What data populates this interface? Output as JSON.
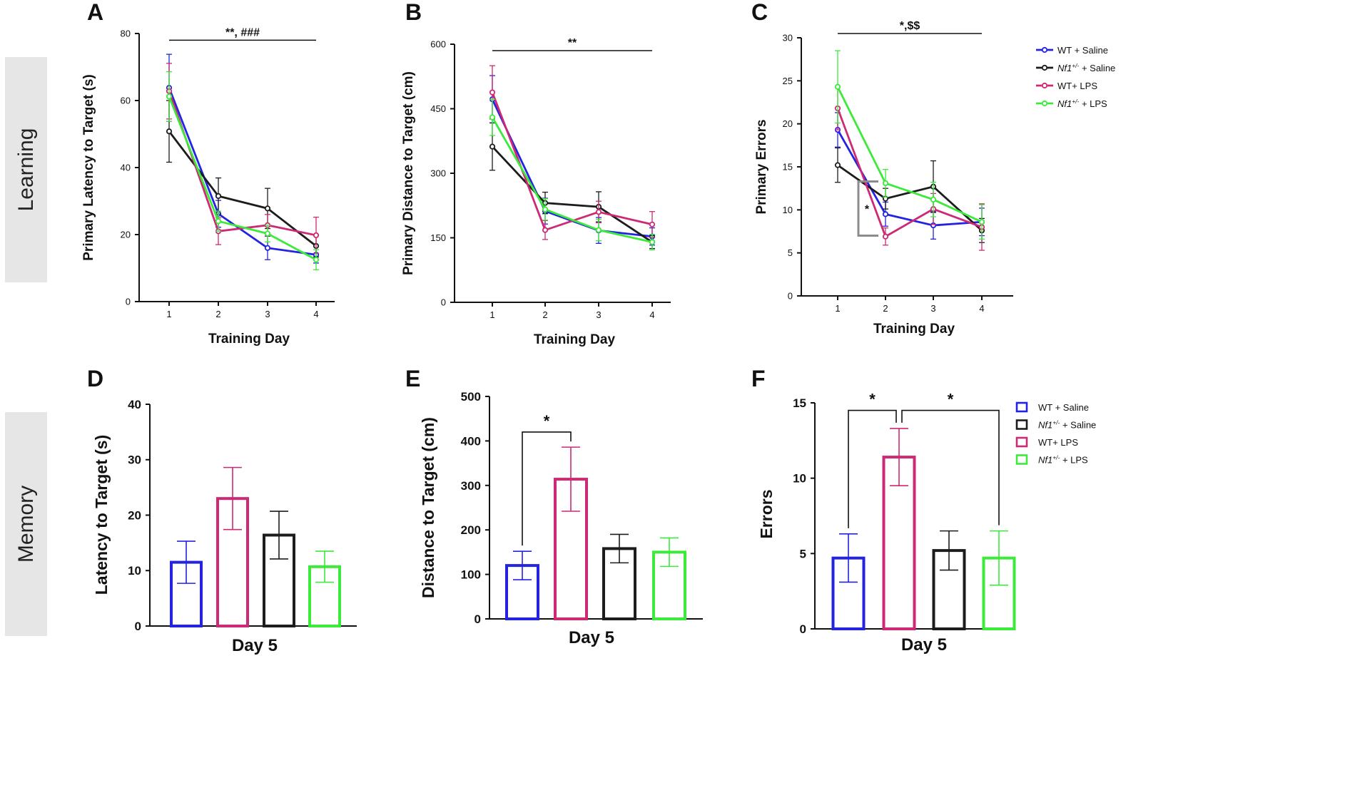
{
  "row_labels": {
    "learning": "Learning",
    "memory": "Memory"
  },
  "colors": {
    "wt_saline": "#2323e0",
    "nf1_saline": "#1c1c1c",
    "wt_lps": "#cc2a74",
    "nf1_lps": "#3bea3b"
  },
  "chart_data": [
    {
      "panel": "A",
      "type": "line",
      "xlabel": "Training Day",
      "ylabel": "Primary Latency to Target (s)",
      "categories": [
        1,
        2,
        3,
        4
      ],
      "ylim": [
        0,
        80
      ],
      "yticks": [
        0,
        20,
        40,
        60,
        80
      ],
      "series": [
        {
          "name": "WT + Saline",
          "color": "#2323e0",
          "values": [
            63.8,
            26.2,
            16.0,
            14.0
          ],
          "errors": [
            10.0,
            4.0,
            3.5,
            2.5
          ]
        },
        {
          "name": "Nf1+/- + Saline",
          "color": "#1c1c1c",
          "values": [
            50.8,
            31.5,
            27.8,
            16.6
          ],
          "errors": [
            9.2,
            5.4,
            6.0,
            3.3
          ]
        },
        {
          "name": "WT+ LPS",
          "color": "#cc2a74",
          "values": [
            62.8,
            21.0,
            22.8,
            19.8
          ],
          "errors": [
            8.3,
            4.0,
            3.2,
            5.4
          ]
        },
        {
          "name": "Nf1+/- + LPS",
          "color": "#3bea3b",
          "values": [
            61.2,
            24.0,
            20.3,
            12.5
          ],
          "errors": [
            7.4,
            3.0,
            2.5,
            3.0
          ]
        }
      ],
      "annotations": [
        {
          "text": "**, ###",
          "from": 1,
          "to": 4,
          "level": 78
        }
      ]
    },
    {
      "panel": "B",
      "type": "line",
      "xlabel": "Training Day",
      "ylabel": "Primary Distance to Target (cm)",
      "categories": [
        1,
        2,
        3,
        4
      ],
      "ylim": [
        0,
        600
      ],
      "yticks": [
        0,
        150,
        300,
        450,
        600
      ],
      "series": [
        {
          "name": "WT + Saline",
          "color": "#2323e0",
          "values": [
            472,
            212,
            167,
            153
          ],
          "errors": [
            55,
            30,
            30,
            20
          ]
        },
        {
          "name": "Nf1+/- + Saline",
          "color": "#1c1c1c",
          "values": [
            362,
            231,
            222,
            140
          ],
          "errors": [
            55,
            25,
            35,
            15
          ]
        },
        {
          "name": "WT+ LPS",
          "color": "#cc2a74",
          "values": [
            488,
            168,
            210,
            181
          ],
          "errors": [
            62,
            22,
            25,
            30
          ]
        },
        {
          "name": "Nf1+/- + LPS",
          "color": "#3bea3b",
          "values": [
            430,
            216,
            168,
            140
          ],
          "errors": [
            42,
            25,
            25,
            18
          ]
        }
      ],
      "annotations": [
        {
          "text": "**",
          "from": 1,
          "to": 4,
          "level": 585
        }
      ]
    },
    {
      "panel": "C",
      "type": "line",
      "xlabel": "Training Day",
      "ylabel": "Primary Errors",
      "categories": [
        1,
        2,
        3,
        4
      ],
      "ylim": [
        0,
        30
      ],
      "yticks": [
        0,
        5,
        10,
        15,
        20,
        25,
        30
      ],
      "series": [
        {
          "name": "WT + Saline",
          "color": "#2323e0",
          "values": [
            19.3,
            9.5,
            8.2,
            8.6
          ],
          "errors": [
            2.0,
            1.4,
            1.6,
            1.6
          ]
        },
        {
          "name": "Nf1+/- + Saline",
          "color": "#1c1c1c",
          "values": [
            15.2,
            11.3,
            12.7,
            7.6
          ],
          "errors": [
            2.0,
            1.2,
            3.0,
            1.4
          ]
        },
        {
          "name": "WT+ LPS",
          "color": "#cc2a74",
          "values": [
            21.8,
            6.9,
            10.1,
            8.0
          ],
          "errors": [
            2.5,
            1.0,
            1.8,
            2.7
          ]
        },
        {
          "name": "Nf1+/- + LPS",
          "color": "#3bea3b",
          "values": [
            24.3,
            13.1,
            11.2,
            8.6
          ],
          "errors": [
            4.2,
            1.6,
            2.0,
            2.0
          ]
        }
      ],
      "annotations": [
        {
          "text": "*,$$",
          "from": 1,
          "to": 4,
          "level": 30.5
        }
      ],
      "inner_annotation": {
        "text": "*",
        "day": 1.5,
        "from": 13.3,
        "to": 7.0
      },
      "legend": [
        "WT + Saline",
        "Nf1+/- + Saline",
        "WT+ LPS",
        "Nf1+/- + LPS"
      ]
    },
    {
      "panel": "D",
      "type": "bar",
      "xlabel": "Day 5",
      "ylabel": "Latency to Target (s)",
      "ylim": [
        0,
        40
      ],
      "yticks": [
        0,
        10,
        20,
        30,
        40
      ],
      "categories": [
        "WT + Saline",
        "WT+ LPS",
        "Nf1+/- + Saline",
        "Nf1+/- + LPS"
      ],
      "colors": [
        "#2323e0",
        "#cc2a74",
        "#1c1c1c",
        "#3bea3b"
      ],
      "values": [
        11.5,
        23.0,
        16.4,
        10.7
      ],
      "errors": [
        3.8,
        5.6,
        4.3,
        2.8
      ]
    },
    {
      "panel": "E",
      "type": "bar",
      "xlabel": "Day 5",
      "ylabel": "Distance to Target (cm)",
      "ylim": [
        0,
        500
      ],
      "yticks": [
        0,
        100,
        200,
        300,
        400,
        500
      ],
      "categories": [
        "WT + Saline",
        "WT+ LPS",
        "Nf1+/- + Saline",
        "Nf1+/- + LPS"
      ],
      "colors": [
        "#2323e0",
        "#cc2a74",
        "#1c1c1c",
        "#3bea3b"
      ],
      "values": [
        120,
        314,
        158,
        150
      ],
      "errors": [
        32,
        72,
        32,
        32
      ],
      "brackets": [
        {
          "from": 0,
          "to": 1,
          "text": "*",
          "level": 420
        }
      ]
    },
    {
      "panel": "F",
      "type": "bar",
      "xlabel": "Day 5",
      "ylabel": "Errors",
      "ylim": [
        0,
        15
      ],
      "yticks": [
        0,
        5,
        10,
        15
      ],
      "categories": [
        "WT + Saline",
        "WT+ LPS",
        "Nf1+/- + Saline",
        "Nf1+/- + LPS"
      ],
      "colors": [
        "#2323e0",
        "#cc2a74",
        "#1c1c1c",
        "#3bea3b"
      ],
      "values": [
        4.7,
        11.4,
        5.2,
        4.7
      ],
      "errors": [
        1.6,
        1.9,
        1.3,
        1.8
      ],
      "brackets": [
        {
          "from": 0,
          "to": 1,
          "text": "*",
          "level": 14.5
        },
        {
          "from": 1,
          "to": 3,
          "text": "*",
          "level": 14.5
        }
      ],
      "legend": [
        "WT + Saline",
        "Nf1+/- + Saline",
        "WT+ LPS",
        "Nf1+/- + LPS"
      ]
    }
  ]
}
